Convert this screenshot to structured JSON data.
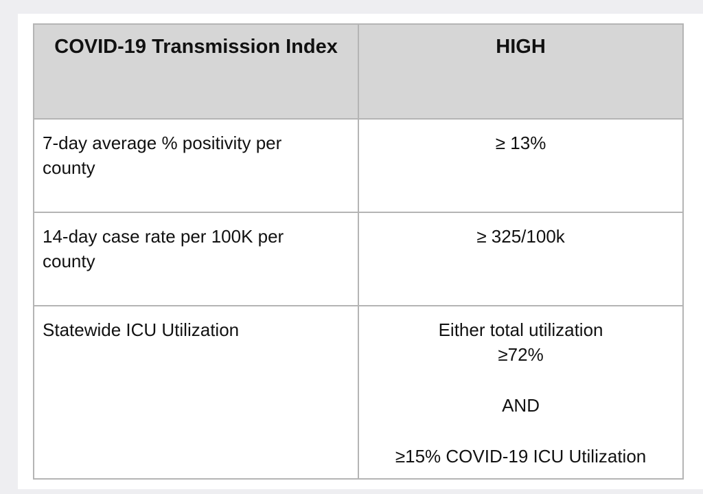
{
  "table": {
    "header": {
      "left": "COVID-19 Transmission Index",
      "right": "HIGH"
    },
    "rows": [
      {
        "metric": "7-day average % positivity per county",
        "threshold": "≥ 13%"
      },
      {
        "metric": "14-day case rate per 100K per county",
        "threshold": "≥ 325/100k"
      },
      {
        "metric": "Statewide ICU Utilization",
        "threshold_line1": "Either total utilization",
        "threshold_line2": "≥72%",
        "threshold_connector": "AND",
        "threshold_line3": "≥15% COVID-19 ICU Utilization"
      }
    ]
  }
}
